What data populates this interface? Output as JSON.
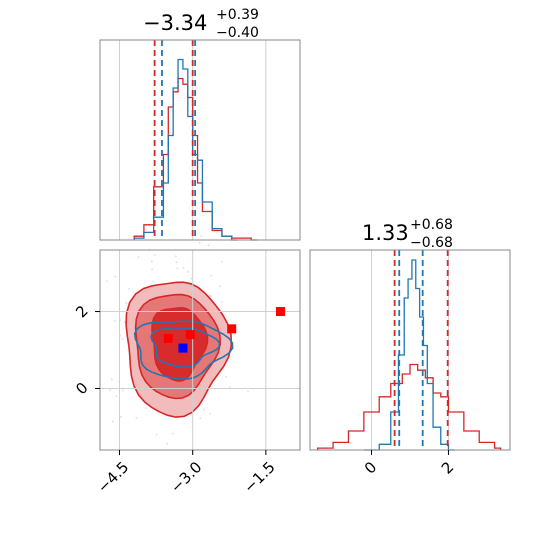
{
  "colors": {
    "red": "#d62728",
    "blue": "#1f77b4",
    "red_fill_outer": "#f2b8b8",
    "red_fill_mid": "#e57373",
    "red_fill_inner": "#d62728",
    "grid": "#d0d0d0",
    "truth_red": "#ff0000",
    "truth_blue": "#0000ff"
  },
  "chart_data": [
    {
      "type": "histogram",
      "panel": "top-left marginal",
      "title": {
        "value": "−3.34",
        "plus": "+0.39",
        "minus": "−0.40"
      },
      "xlim": [
        -4.9,
        -0.8
      ],
      "grid": true,
      "vlines": {
        "red": [
          -3.78,
          -3.0
        ],
        "blue": [
          -3.63,
          -2.95
        ]
      },
      "series": [
        {
          "color": "red",
          "x": [
            -4.2,
            -4.0,
            -3.8,
            -3.6,
            -3.5,
            -3.4,
            -3.3,
            -3.2,
            -3.1,
            -3.0,
            -2.9,
            -2.8,
            -2.6,
            -2.4,
            -2.2,
            -2.0,
            -1.8
          ],
          "y": [
            0.02,
            0.08,
            0.28,
            0.45,
            0.7,
            0.78,
            0.85,
            0.82,
            0.75,
            0.55,
            0.3,
            0.15,
            0.05,
            0.02,
            0.01,
            0.01,
            0.0
          ]
        },
        {
          "color": "blue",
          "x": [
            -4.2,
            -4.0,
            -3.8,
            -3.6,
            -3.5,
            -3.4,
            -3.3,
            -3.2,
            -3.1,
            -3.0,
            -2.9,
            -2.8,
            -2.6,
            -2.4,
            -2.2
          ],
          "y": [
            0.01,
            0.04,
            0.12,
            0.3,
            0.55,
            0.8,
            0.95,
            0.9,
            0.65,
            0.45,
            0.42,
            0.2,
            0.06,
            0.02,
            0.0
          ]
        }
      ]
    },
    {
      "type": "contour",
      "panel": "bottom-left 2d",
      "xlim": [
        -4.9,
        -0.8
      ],
      "ylim": [
        -1.6,
        3.6
      ],
      "xticks": [
        "−4.5",
        "−3.0",
        "−1.5"
      ],
      "xtick_values": [
        -4.5,
        -3.0,
        -1.5
      ],
      "yticks": [
        "0",
        "2"
      ],
      "ytick_values": [
        0,
        2
      ],
      "grid": true,
      "truth_points": [
        {
          "x": -3.2,
          "y": 1.05,
          "color": "blue"
        },
        {
          "x": -3.5,
          "y": 1.3,
          "color": "red"
        },
        {
          "x": -3.05,
          "y": 1.4,
          "color": "red"
        },
        {
          "x": -2.2,
          "y": 1.55,
          "color": "red"
        },
        {
          "x": -1.2,
          "y": 2.0,
          "color": "red"
        }
      ]
    },
    {
      "type": "histogram",
      "panel": "bottom-right marginal",
      "title": {
        "value": "1.33",
        "plus": "+0.68",
        "minus": "−0.68"
      },
      "xlim": [
        -1.6,
        3.6
      ],
      "xticks": [
        "0",
        "2"
      ],
      "xtick_values": [
        0,
        2
      ],
      "grid": true,
      "vlines": {
        "red": [
          0.6,
          1.98
        ],
        "blue": [
          0.72,
          1.33
        ]
      },
      "series": [
        {
          "color": "red",
          "x": [
            -1.4,
            -1.0,
            -0.6,
            -0.2,
            0.2,
            0.5,
            0.8,
            1.0,
            1.2,
            1.4,
            1.6,
            1.8,
            2.0,
            2.4,
            2.8,
            3.2
          ],
          "y": [
            0.01,
            0.04,
            0.1,
            0.2,
            0.28,
            0.35,
            0.4,
            0.45,
            0.42,
            0.38,
            0.3,
            0.28,
            0.2,
            0.1,
            0.04,
            0.01
          ]
        },
        {
          "color": "blue",
          "x": [
            -0.2,
            0.2,
            0.5,
            0.7,
            0.85,
            0.95,
            1.05,
            1.15,
            1.25,
            1.35,
            1.45,
            1.6,
            1.8,
            2.0
          ],
          "y": [
            0.0,
            0.03,
            0.2,
            0.5,
            0.8,
            0.9,
            1.0,
            0.85,
            0.7,
            0.55,
            0.35,
            0.12,
            0.03,
            0.0
          ]
        }
      ]
    }
  ]
}
